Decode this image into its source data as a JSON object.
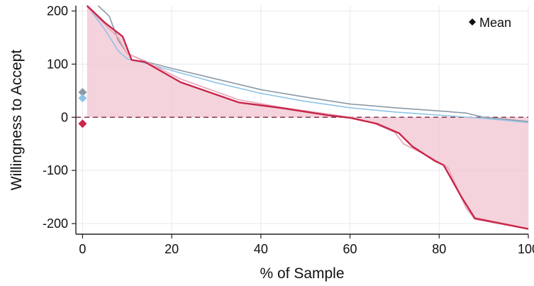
{
  "chart_data": {
    "type": "line",
    "title": "",
    "xlabel": "% of Sample",
    "ylabel": "Willingness to Accept",
    "xlim": [
      -1.5,
      100
    ],
    "ylim": [
      -220,
      210
    ],
    "xticks": [
      0,
      20,
      40,
      60,
      80,
      100
    ],
    "yticks": [
      200,
      100,
      0,
      -100,
      -200
    ],
    "grid": true,
    "reference_line": 0,
    "legend": {
      "position": "top-right",
      "entries": [
        "Mean"
      ]
    },
    "colors": {
      "grey": "#8c9aa6",
      "light_blue": "#8fc4e8",
      "light_pink": "#e9a9bd",
      "crimson": "#c8264a",
      "fill": "#f2c4d0",
      "reference": "#8a3552",
      "grid": "#e8e8e8",
      "axis": "#222222"
    },
    "series": [
      {
        "color": "grey",
        "x": [
          3.5,
          6,
          8,
          10,
          14,
          20,
          30,
          40,
          50,
          60,
          70,
          80,
          86,
          90,
          94,
          100
        ],
        "y": [
          210,
          190,
          145,
          120,
          105,
          92,
          72,
          52,
          38,
          25,
          18,
          12,
          8,
          0,
          -3,
          -8
        ]
      },
      {
        "color": "light_blue",
        "x": [
          1,
          5,
          8,
          10,
          14,
          20,
          30,
          40,
          50,
          60,
          70,
          80,
          90,
          100
        ],
        "y": [
          210,
          165,
          125,
          110,
          102,
          88,
          65,
          45,
          30,
          18,
          10,
          4,
          -2,
          -10
        ]
      },
      {
        "color": "light_pink",
        "x": [
          1,
          5,
          8,
          10,
          14,
          22,
          35,
          45,
          55,
          60,
          65,
          70,
          72,
          78,
          82,
          86,
          88,
          100
        ],
        "y": [
          208,
          175,
          150,
          120,
          106,
          72,
          33,
          18,
          6,
          0,
          -10,
          -28,
          -50,
          -75,
          -95,
          -170,
          -192,
          -210
        ]
      },
      {
        "color": "crimson",
        "x": [
          1,
          5,
          9,
          11,
          14,
          22,
          35,
          45,
          55,
          60,
          66,
          71,
          74,
          79,
          81,
          85,
          88,
          100
        ],
        "y": [
          210,
          178,
          152,
          108,
          104,
          66,
          28,
          17,
          4,
          -1,
          -12,
          -30,
          -55,
          -82,
          -90,
          -150,
          -190,
          -210
        ]
      }
    ],
    "means": [
      {
        "color": "grey",
        "x": 0,
        "y": 47
      },
      {
        "color": "light_blue",
        "x": 0,
        "y": 36
      },
      {
        "color": "crimson",
        "x": 0,
        "y": -12
      }
    ]
  }
}
